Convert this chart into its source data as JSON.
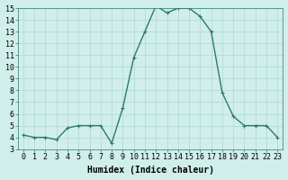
{
  "x": [
    0,
    1,
    2,
    3,
    4,
    5,
    6,
    7,
    8,
    9,
    10,
    11,
    12,
    13,
    14,
    15,
    16,
    17,
    18,
    19,
    20,
    21,
    22,
    23
  ],
  "y": [
    4.2,
    4.0,
    4.0,
    3.8,
    4.8,
    5.0,
    5.0,
    5.0,
    3.5,
    6.5,
    10.8,
    13.0,
    15.2,
    14.6,
    15.0,
    15.0,
    14.3,
    13.0,
    7.8,
    5.8,
    5.0,
    5.0,
    5.0,
    4.0
  ],
  "line_color": "#2d7a6e",
  "marker_color": "#2d7a6e",
  "bg_color": "#d0eeea",
  "grid_color": "#b0d8d2",
  "xlabel": "Humidex (Indice chaleur)",
  "ylim": [
    3,
    15
  ],
  "xlim": [
    -0.5,
    23.5
  ],
  "yticks": [
    3,
    4,
    5,
    6,
    7,
    8,
    9,
    10,
    11,
    12,
    13,
    14,
    15
  ],
  "xticks": [
    0,
    1,
    2,
    3,
    4,
    5,
    6,
    7,
    8,
    9,
    10,
    11,
    12,
    13,
    14,
    15,
    16,
    17,
    18,
    19,
    20,
    21,
    22,
    23
  ],
  "xlabel_fontsize": 7,
  "tick_fontsize": 6,
  "linewidth": 1.0,
  "markersize": 2.5
}
